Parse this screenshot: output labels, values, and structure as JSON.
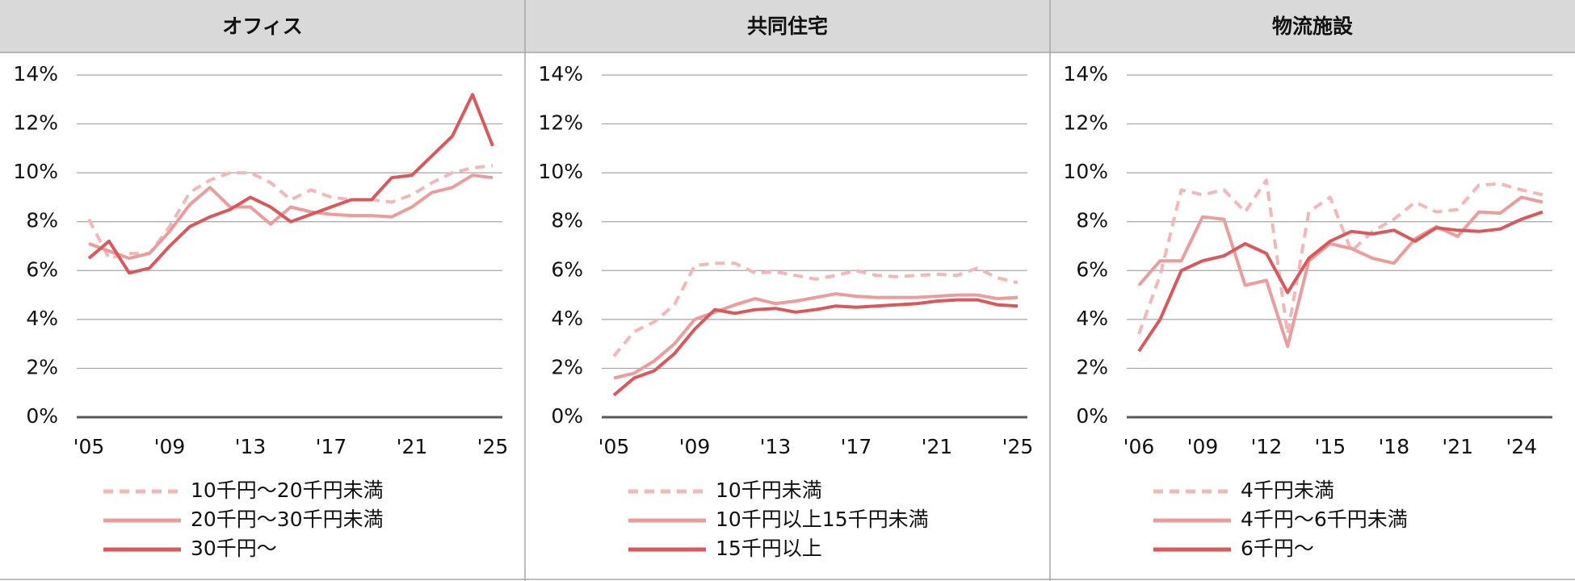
{
  "chart_data": [
    {
      "type": "line",
      "title": "オフィス",
      "x": [
        2005,
        2006,
        2007,
        2008,
        2009,
        2010,
        2011,
        2012,
        2013,
        2014,
        2015,
        2016,
        2017,
        2018,
        2019,
        2020,
        2021,
        2022,
        2023,
        2024,
        2025
      ],
      "series": [
        {
          "name": "10千円～20千円未満",
          "color": "#f2b8b8",
          "line_style": "dashed",
          "values": [
            8.1,
            6.5,
            6.7,
            6.7,
            7.8,
            9.2,
            9.7,
            10.0,
            10.0,
            9.6,
            8.9,
            9.3,
            9.0,
            8.9,
            8.9,
            8.8,
            9.1,
            9.6,
            10.0,
            10.2,
            10.3
          ]
        },
        {
          "name": "20千円～30千円未満",
          "color": "#eb9c9c",
          "line_style": "solid",
          "values": [
            7.1,
            6.8,
            6.5,
            6.7,
            7.6,
            8.7,
            9.4,
            8.6,
            8.6,
            7.9,
            8.6,
            8.4,
            8.3,
            8.25,
            8.25,
            8.2,
            8.6,
            9.2,
            9.4,
            9.9,
            9.8
          ]
        },
        {
          "name": "30千円～",
          "color": "#d9585c",
          "line_style": "solid",
          "values": [
            6.5,
            7.2,
            5.9,
            6.1,
            7.0,
            7.8,
            8.2,
            8.5,
            9.0,
            8.6,
            8.0,
            8.3,
            8.6,
            8.9,
            8.9,
            9.8,
            9.9,
            10.7,
            11.5,
            13.2,
            11.1
          ]
        }
      ],
      "xlim": [
        2005,
        2025
      ],
      "xticks": [
        {
          "value": 2005,
          "label": "'05"
        },
        {
          "value": 2009,
          "label": "'09"
        },
        {
          "value": 2013,
          "label": "'13"
        },
        {
          "value": 2017,
          "label": "'17"
        },
        {
          "value": 2021,
          "label": "'21"
        },
        {
          "value": 2025,
          "label": "'25"
        }
      ],
      "ylim": [
        0,
        14
      ],
      "yticks": [
        {
          "value": 0,
          "label": "0%"
        },
        {
          "value": 2,
          "label": "2%"
        },
        {
          "value": 4,
          "label": "4%"
        },
        {
          "value": 6,
          "label": "6%"
        },
        {
          "value": 8,
          "label": "8%"
        },
        {
          "value": 10,
          "label": "10%"
        },
        {
          "value": 12,
          "label": "12%"
        },
        {
          "value": 14,
          "label": "14%"
        }
      ],
      "grid": true
    },
    {
      "type": "line",
      "title": "共同住宅",
      "x": [
        2005,
        2006,
        2007,
        2008,
        2009,
        2010,
        2011,
        2012,
        2013,
        2014,
        2015,
        2016,
        2017,
        2018,
        2019,
        2020,
        2021,
        2022,
        2023,
        2024,
        2025
      ],
      "series": [
        {
          "name": "10千円未満",
          "color": "#f2b8b8",
          "line_style": "dashed",
          "values": [
            2.5,
            3.5,
            3.9,
            4.6,
            6.2,
            6.3,
            6.3,
            5.9,
            5.95,
            5.8,
            5.65,
            5.8,
            6.0,
            5.8,
            5.75,
            5.8,
            5.85,
            5.8,
            6.1,
            5.7,
            5.5
          ]
        },
        {
          "name": "10千円以上15千円未満",
          "color": "#eb9c9c",
          "line_style": "solid",
          "values": [
            1.6,
            1.8,
            2.3,
            3.0,
            4.0,
            4.3,
            4.6,
            4.85,
            4.65,
            4.75,
            4.9,
            5.05,
            4.95,
            4.9,
            4.9,
            4.9,
            4.95,
            5.0,
            5.0,
            4.85,
            4.9
          ]
        },
        {
          "name": "15千円以上",
          "color": "#d9585c",
          "line_style": "solid",
          "values": [
            0.9,
            1.6,
            1.9,
            2.6,
            3.6,
            4.4,
            4.25,
            4.4,
            4.45,
            4.3,
            4.4,
            4.55,
            4.5,
            4.55,
            4.6,
            4.65,
            4.75,
            4.8,
            4.8,
            4.6,
            4.55
          ]
        }
      ],
      "xlim": [
        2005,
        2025
      ],
      "xticks": [
        {
          "value": 2005,
          "label": "'05"
        },
        {
          "value": 2009,
          "label": "'09"
        },
        {
          "value": 2013,
          "label": "'13"
        },
        {
          "value": 2017,
          "label": "'17"
        },
        {
          "value": 2021,
          "label": "'21"
        },
        {
          "value": 2025,
          "label": "'25"
        }
      ],
      "ylim": [
        0,
        14
      ],
      "yticks": [
        {
          "value": 0,
          "label": "0%"
        },
        {
          "value": 2,
          "label": "2%"
        },
        {
          "value": 4,
          "label": "4%"
        },
        {
          "value": 6,
          "label": "6%"
        },
        {
          "value": 8,
          "label": "8%"
        },
        {
          "value": 10,
          "label": "10%"
        },
        {
          "value": 12,
          "label": "12%"
        },
        {
          "value": 14,
          "label": "14%"
        }
      ],
      "grid": true
    },
    {
      "type": "line",
      "title": "物流施設",
      "x": [
        2006,
        2007,
        2008,
        2009,
        2010,
        2011,
        2012,
        2013,
        2014,
        2015,
        2016,
        2017,
        2018,
        2019,
        2020,
        2021,
        2022,
        2023,
        2024,
        2025
      ],
      "series": [
        {
          "name": "4千円未満",
          "color": "#f2b8b8",
          "line_style": "dashed",
          "values": [
            3.4,
            5.8,
            9.3,
            9.1,
            9.3,
            8.4,
            9.7,
            3.4,
            8.4,
            9.0,
            6.8,
            7.6,
            8.1,
            8.8,
            8.4,
            8.5,
            9.5,
            9.55,
            9.3,
            9.1
          ]
        },
        {
          "name": "4千円～6千円未満",
          "color": "#eb9c9c",
          "line_style": "solid",
          "values": [
            5.4,
            6.4,
            6.4,
            8.2,
            8.1,
            5.4,
            5.6,
            2.9,
            6.4,
            7.1,
            6.9,
            6.5,
            6.3,
            7.3,
            7.8,
            7.4,
            8.4,
            8.35,
            9.0,
            8.8
          ]
        },
        {
          "name": "6千円～",
          "color": "#d9585c",
          "line_style": "solid",
          "values": [
            2.7,
            4.0,
            6.0,
            6.4,
            6.6,
            7.1,
            6.7,
            5.1,
            6.5,
            7.2,
            7.6,
            7.5,
            7.65,
            7.2,
            7.75,
            7.65,
            7.6,
            7.7,
            8.1,
            8.4
          ]
        }
      ],
      "xlim": [
        2006,
        2025
      ],
      "xticks": [
        {
          "value": 2006,
          "label": "'06"
        },
        {
          "value": 2009,
          "label": "'09"
        },
        {
          "value": 2012,
          "label": "'12"
        },
        {
          "value": 2015,
          "label": "'15"
        },
        {
          "value": 2018,
          "label": "'18"
        },
        {
          "value": 2021,
          "label": "'21"
        },
        {
          "value": 2024,
          "label": "'24"
        }
      ],
      "ylim": [
        0,
        14
      ],
      "yticks": [
        {
          "value": 0,
          "label": "0%"
        },
        {
          "value": 2,
          "label": "2%"
        },
        {
          "value": 4,
          "label": "4%"
        },
        {
          "value": 6,
          "label": "6%"
        },
        {
          "value": 8,
          "label": "8%"
        },
        {
          "value": 10,
          "label": "10%"
        },
        {
          "value": 12,
          "label": "12%"
        },
        {
          "value": 14,
          "label": "14%"
        }
      ],
      "grid": true
    }
  ]
}
